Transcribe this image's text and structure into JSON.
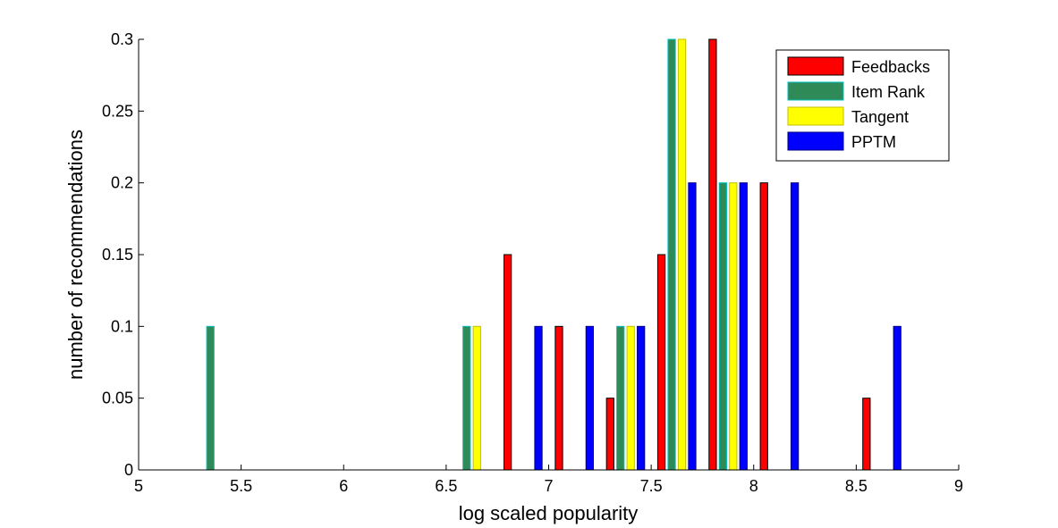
{
  "chart_data": {
    "type": "bar",
    "title": "",
    "xlabel": "log scaled popularity",
    "ylabel": "number of recommendations",
    "xlim": [
      5,
      9
    ],
    "ylim": [
      0,
      0.3
    ],
    "xticks": [
      "5",
      "5.5",
      "6",
      "6.5",
      "7",
      "7.5",
      "8",
      "8.5",
      "9"
    ],
    "yticks": [
      "0",
      "0.05",
      "0.1",
      "0.15",
      "0.2",
      "0.25",
      "0.3"
    ],
    "grid": false,
    "legend_position": "top-right",
    "bin_centers": [
      5.125,
      5.375,
      5.625,
      5.875,
      6.125,
      6.375,
      6.625,
      6.875,
      7.125,
      7.375,
      7.625,
      7.875,
      8.125,
      8.375,
      8.625,
      8.875
    ],
    "series": [
      {
        "name": "Feedbacks",
        "color": "#ff0000",
        "values": [
          0,
          0,
          0,
          0,
          0,
          0,
          0,
          0.15,
          0.1,
          0.05,
          0.15,
          0.3,
          0.2,
          0,
          0.05,
          0
        ]
      },
      {
        "name": "Item Rank",
        "color": "#2e8b57",
        "values": [
          0,
          0.1,
          0,
          0,
          0,
          0,
          0.1,
          0,
          0,
          0.1,
          0.3,
          0.2,
          0,
          0,
          0,
          0
        ]
      },
      {
        "name": "Tangent",
        "color": "#ffff00",
        "values": [
          0,
          0,
          0,
          0,
          0,
          0,
          0.1,
          0,
          0,
          0.1,
          0.3,
          0.2,
          0,
          0,
          0,
          0
        ]
      },
      {
        "name": "PPTM",
        "color": "#0000ff",
        "values": [
          0,
          0,
          0,
          0,
          0,
          0,
          0,
          0.1,
          0.1,
          0.1,
          0.2,
          0.2,
          0.2,
          0,
          0.1,
          0
        ]
      }
    ],
    "series_edge_colors": [
      "#000000",
      "#00c0c0",
      "#c0c000",
      "#000080"
    ]
  }
}
